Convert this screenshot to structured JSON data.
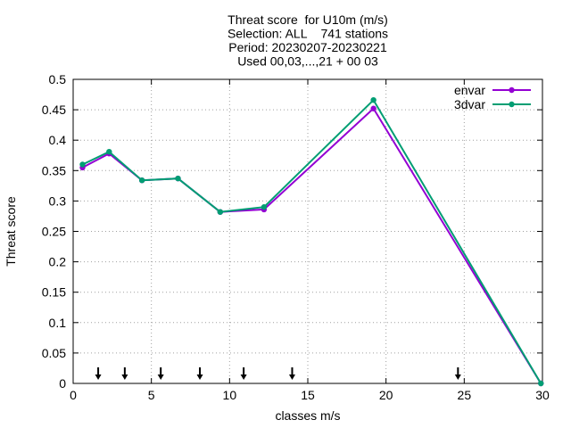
{
  "chart_data": {
    "type": "line",
    "title_lines": [
      "Threat score  for U10m (m/s)",
      "Selection: ALL    741 stations",
      "Period: 20230207-20230221",
      "Used 00,03,...,21 + 00 03"
    ],
    "xlabel": "classes m/s",
    "ylabel": "Threat score",
    "xlim": [
      0,
      30
    ],
    "ylim": [
      0,
      0.5
    ],
    "xticks": [
      0,
      5,
      10,
      15,
      20,
      25,
      30
    ],
    "yticks": [
      0,
      0.05,
      0.1,
      0.15,
      0.2,
      0.25,
      0.3,
      0.35,
      0.4,
      0.45,
      0.5
    ],
    "grid": true,
    "legend_position": "top-right",
    "series": [
      {
        "name": "envar",
        "color": "#9400d3",
        "points": [
          [
            0.6,
            0.355
          ],
          [
            2.3,
            0.378
          ],
          [
            4.4,
            0.334
          ],
          [
            6.7,
            0.337
          ],
          [
            9.4,
            0.282
          ],
          [
            12.2,
            0.286
          ],
          [
            19.2,
            0.452
          ],
          [
            29.9,
            0.0
          ]
        ]
      },
      {
        "name": "3dvar",
        "color": "#009e73",
        "points": [
          [
            0.6,
            0.36
          ],
          [
            2.3,
            0.381
          ],
          [
            4.4,
            0.334
          ],
          [
            6.7,
            0.337
          ],
          [
            9.4,
            0.282
          ],
          [
            12.2,
            0.29
          ],
          [
            19.2,
            0.466
          ],
          [
            29.9,
            0.0
          ]
        ]
      }
    ],
    "arrow_markers_x": [
      1.6,
      3.3,
      5.6,
      8.1,
      10.9,
      14.0,
      24.6
    ]
  }
}
